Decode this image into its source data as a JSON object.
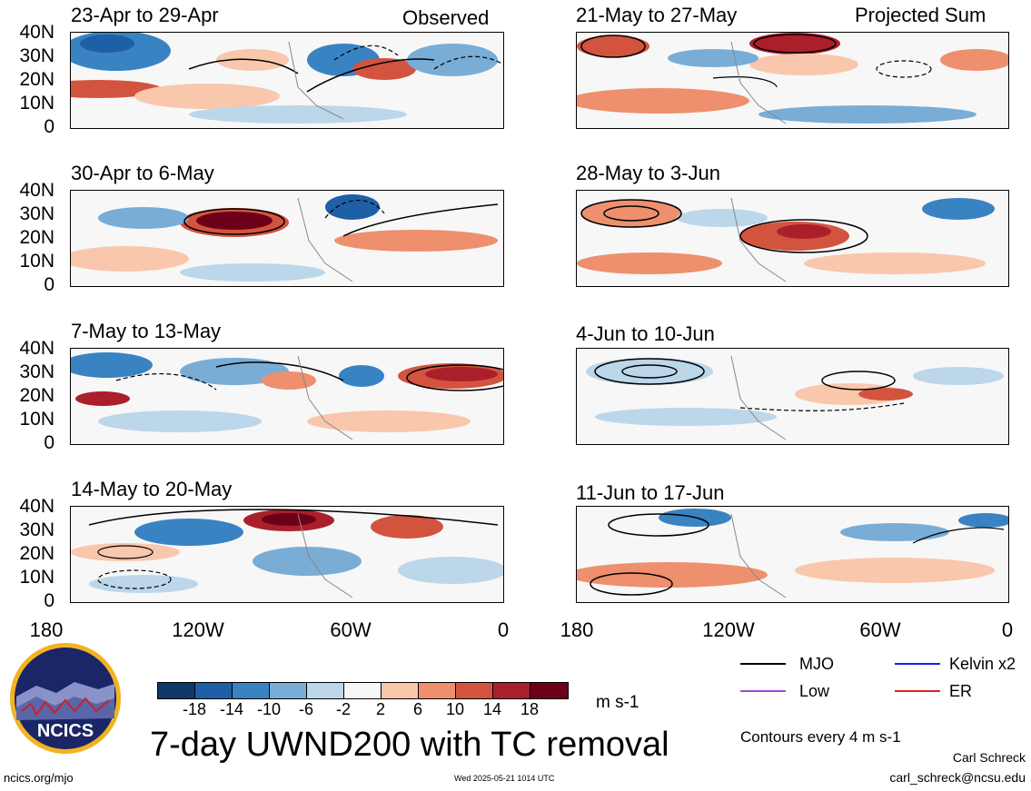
{
  "panels": {
    "observed_tag": "Observed",
    "projected_tag": "Projected Sum",
    "left": [
      {
        "title": "23-Apr to 29-Apr"
      },
      {
        "title": "30-Apr to 6-May"
      },
      {
        "title": "7-May to 13-May"
      },
      {
        "title": "14-May to 20-May"
      }
    ],
    "right": [
      {
        "title": "21-May to 27-May"
      },
      {
        "title": "28-May to 3-Jun"
      },
      {
        "title": "4-Jun to 10-Jun"
      },
      {
        "title": "11-Jun to 17-Jun"
      }
    ]
  },
  "axes": {
    "lat_labels": [
      "40N",
      "30N",
      "20N",
      "10N",
      "0"
    ],
    "lon_labels": [
      "180",
      "120W",
      "60W",
      "0"
    ]
  },
  "colorbar": {
    "labels": [
      "-18",
      "-14",
      "-10",
      "-6",
      "-2",
      "2",
      "6",
      "10",
      "14",
      "18"
    ],
    "colors": [
      "#0d3a6b",
      "#1f5fa6",
      "#3a83c2",
      "#79add6",
      "#bcd6ea",
      "#f7f7f7",
      "#f9c7ac",
      "#ee8f6e",
      "#d2543f",
      "#ab1f2a",
      "#6d0019"
    ],
    "units": "m s-1"
  },
  "legend": {
    "items": [
      {
        "label": "MJO",
        "color": "#000000"
      },
      {
        "label": "Kelvin x2",
        "color": "#1a1aff"
      },
      {
        "label": "Low",
        "color": "#a04ad6"
      },
      {
        "label": "ER",
        "color": "#e0261e"
      }
    ],
    "contour_note": "Contours every 4 m s-1"
  },
  "footer": {
    "main_title": "7-day UWND200 with TC removal",
    "logo_text": "NCICS",
    "url": "ncics.org/mjo",
    "timestamp": "Wed 2025-05-21 1014 UTC",
    "author": "Carl Schreck",
    "email": "carl_schreck@ncsu.edu"
  }
}
